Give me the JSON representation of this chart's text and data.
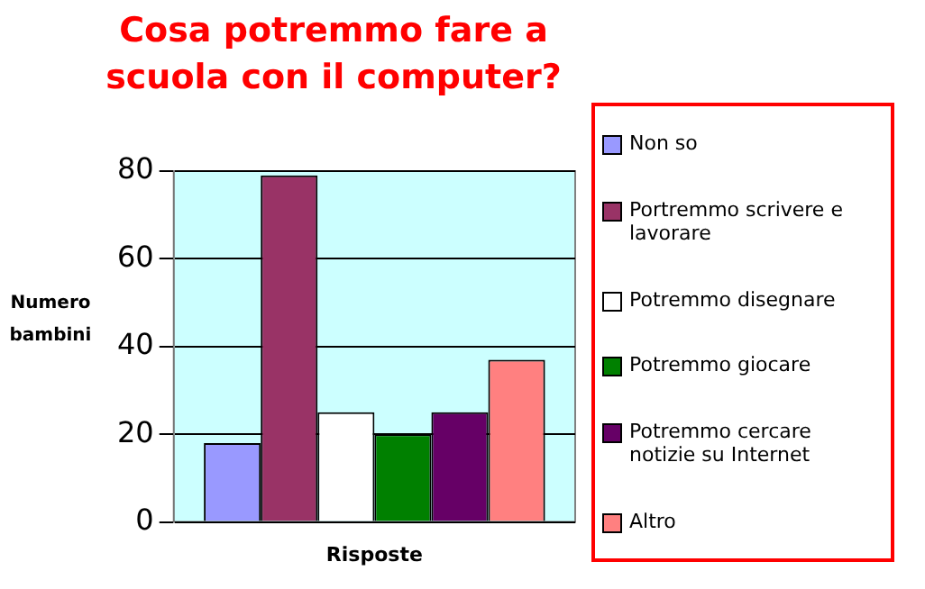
{
  "chart_data": {
    "type": "bar",
    "title": "Cosa potremmo fare a scuola con il computer?",
    "xlabel": "Risposte",
    "ylabel": "Numero bambini",
    "categories": [
      null
    ],
    "ylim": [
      0,
      80
    ],
    "yticks": [
      0,
      20,
      40,
      60,
      80
    ],
    "grid": "y",
    "legend": "right",
    "series": [
      {
        "name": "Non so",
        "color": "#9999ff",
        "values": [
          18
        ]
      },
      {
        "name": "Portremmo scrivere e lavorare",
        "color": "#993366",
        "values": [
          79
        ]
      },
      {
        "name": "Potremmo disegnare",
        "color": "#ffffff",
        "values": [
          25
        ]
      },
      {
        "name": "Potremmo giocare",
        "color": "#008000",
        "values": [
          20
        ]
      },
      {
        "name": "Potremmo cercare notizie su Internet",
        "color": "#660066",
        "values": [
          25
        ]
      },
      {
        "name": "Altro",
        "color": "#ff8080",
        "values": [
          37
        ]
      }
    ]
  }
}
